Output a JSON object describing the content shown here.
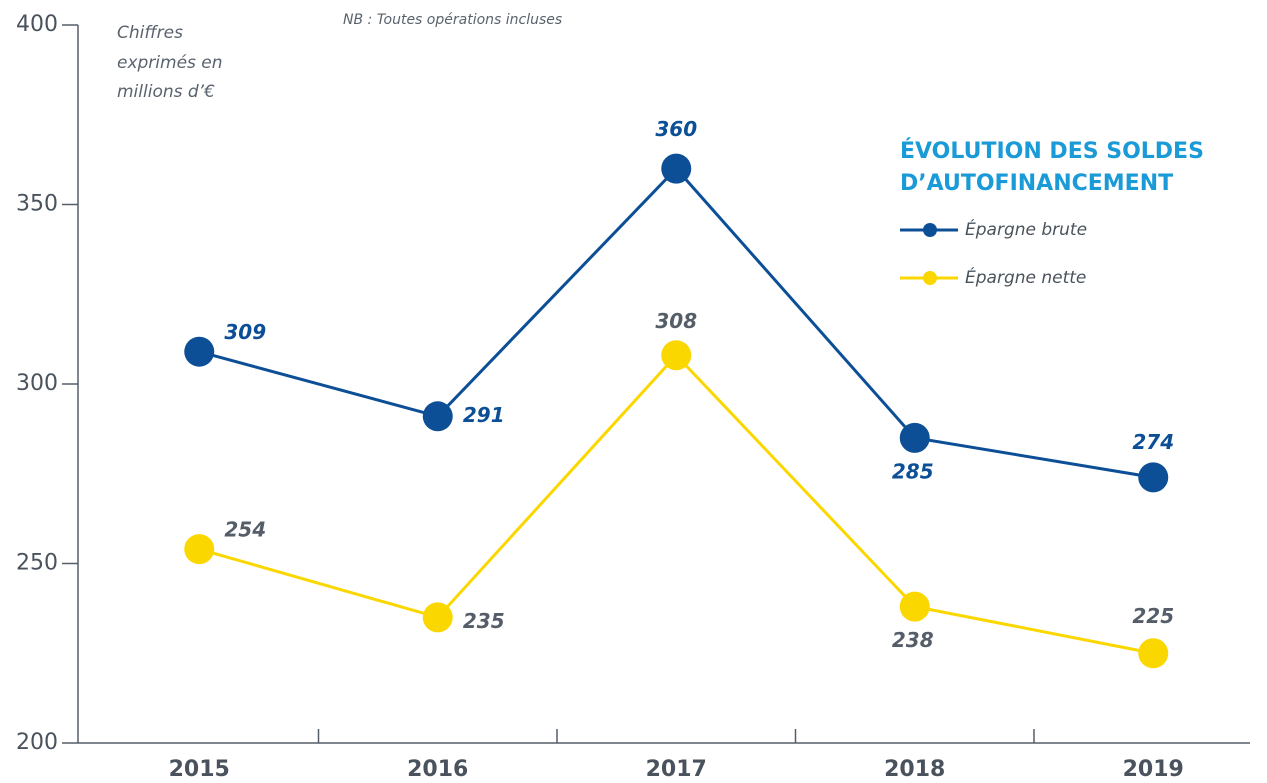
{
  "chart_data": {
    "type": "line",
    "title": [
      "ÉVOLUTION DES SOLDES",
      "D’AUTOFINANCEMENT"
    ],
    "unit_note": [
      "Chiffres",
      "exprimés en",
      "millions d’€"
    ],
    "note": "NB : Toutes opérations incluses",
    "categories": [
      "2015",
      "2016",
      "2017",
      "2018",
      "2019"
    ],
    "series": [
      {
        "name": "Épargne brute",
        "color": "#0c4f96",
        "values": [
          309,
          291,
          360,
          285,
          274
        ]
      },
      {
        "name": "Épargne nette",
        "color": "#fbd700",
        "values": [
          254,
          235,
          308,
          238,
          225
        ]
      }
    ],
    "ylim": [
      200,
      400
    ],
    "yticks": [
      200,
      250,
      300,
      350,
      400
    ]
  }
}
